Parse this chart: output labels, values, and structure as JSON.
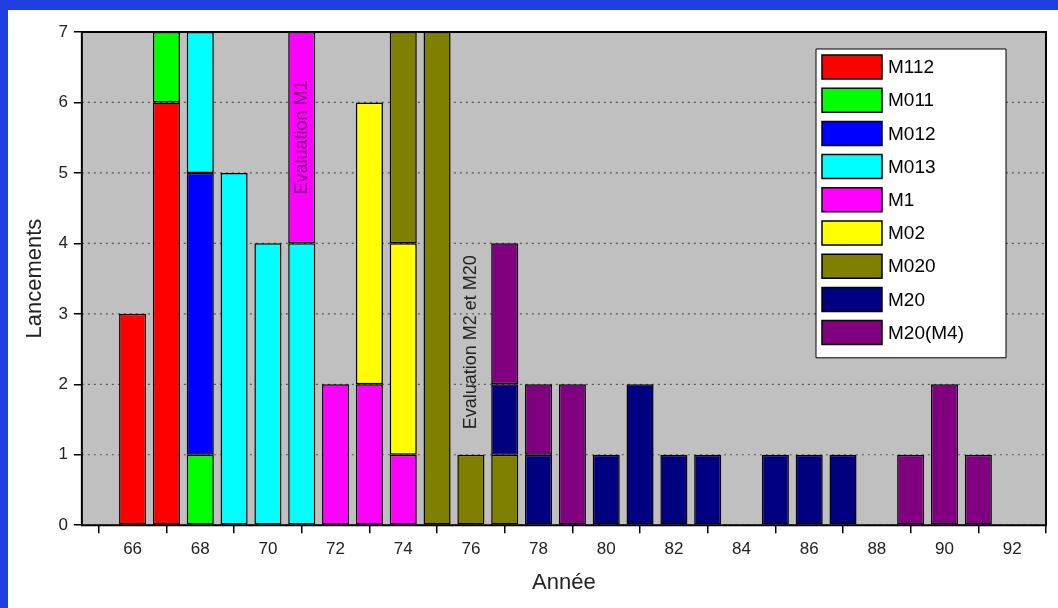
{
  "chart_data": {
    "type": "bar",
    "stacked": true,
    "xlabel": "Année",
    "ylabel": "Lancements",
    "x": [
      66,
      67,
      68,
      69,
      70,
      71,
      72,
      73,
      74,
      75,
      76,
      77,
      78,
      79,
      80,
      81,
      82,
      83,
      85,
      86,
      87,
      89,
      90,
      91
    ],
    "series": [
      {
        "name": "M112",
        "color": "#ff0000",
        "values": [
          3,
          6,
          null,
          null,
          null,
          null,
          null,
          null,
          null,
          null,
          null,
          null,
          null,
          null,
          null,
          null,
          null,
          null,
          null,
          null,
          null,
          null,
          null,
          null
        ]
      },
      {
        "name": "M011",
        "color": "#00ff00",
        "values": [
          null,
          1,
          1,
          null,
          null,
          null,
          null,
          null,
          null,
          null,
          null,
          null,
          null,
          null,
          null,
          null,
          null,
          null,
          null,
          null,
          null,
          null,
          null,
          null
        ]
      },
      {
        "name": "M012",
        "color": "#0000ff",
        "values": [
          null,
          null,
          4,
          null,
          null,
          null,
          null,
          null,
          null,
          null,
          null,
          null,
          null,
          null,
          null,
          null,
          null,
          null,
          null,
          null,
          null,
          null,
          null,
          null
        ]
      },
      {
        "name": "M013",
        "color": "#00ffff",
        "values": [
          null,
          null,
          2,
          5,
          4,
          4,
          null,
          null,
          null,
          null,
          null,
          null,
          null,
          null,
          null,
          null,
          null,
          null,
          null,
          null,
          null,
          null,
          null,
          null
        ]
      },
      {
        "name": "M1",
        "color": "#ff00ff",
        "values": [
          null,
          null,
          null,
          null,
          null,
          3,
          2,
          2,
          1,
          null,
          null,
          null,
          null,
          null,
          null,
          null,
          null,
          null,
          null,
          null,
          null,
          null,
          null,
          null
        ]
      },
      {
        "name": "M02",
        "color": "#ffff00",
        "values": [
          null,
          null,
          null,
          null,
          null,
          null,
          null,
          4,
          3,
          null,
          null,
          null,
          null,
          null,
          null,
          null,
          null,
          null,
          null,
          null,
          null,
          null,
          null,
          null
        ]
      },
      {
        "name": "M020",
        "color": "#808000",
        "values": [
          null,
          null,
          null,
          null,
          null,
          null,
          null,
          null,
          3,
          7,
          1,
          1,
          null,
          null,
          null,
          null,
          null,
          null,
          null,
          null,
          null,
          null,
          null,
          null
        ]
      },
      {
        "name": "M20",
        "color": "#000080",
        "values": [
          null,
          null,
          null,
          null,
          null,
          null,
          null,
          null,
          null,
          null,
          null,
          1,
          1,
          null,
          1,
          2,
          1,
          1,
          1,
          1,
          1,
          null,
          null,
          null
        ]
      },
      {
        "name": "M20(M4)",
        "color": "#800080",
        "values": [
          null,
          null,
          null,
          null,
          null,
          null,
          null,
          null,
          null,
          null,
          null,
          2,
          1,
          2,
          null,
          null,
          null,
          null,
          null,
          null,
          null,
          1,
          2,
          1
        ]
      }
    ],
    "xlim": [
      64.5,
      93
    ],
    "xticks": [
      66,
      68,
      70,
      72,
      74,
      76,
      78,
      80,
      82,
      84,
      86,
      88,
      90,
      92
    ],
    "ylim": [
      0,
      7
    ],
    "yticks": [
      0,
      1,
      2,
      3,
      4,
      5,
      6,
      7
    ],
    "grid": "y",
    "legend": "top right",
    "annotations": [
      "Evaluation M1",
      "Evaluation M2 et M20"
    ]
  }
}
